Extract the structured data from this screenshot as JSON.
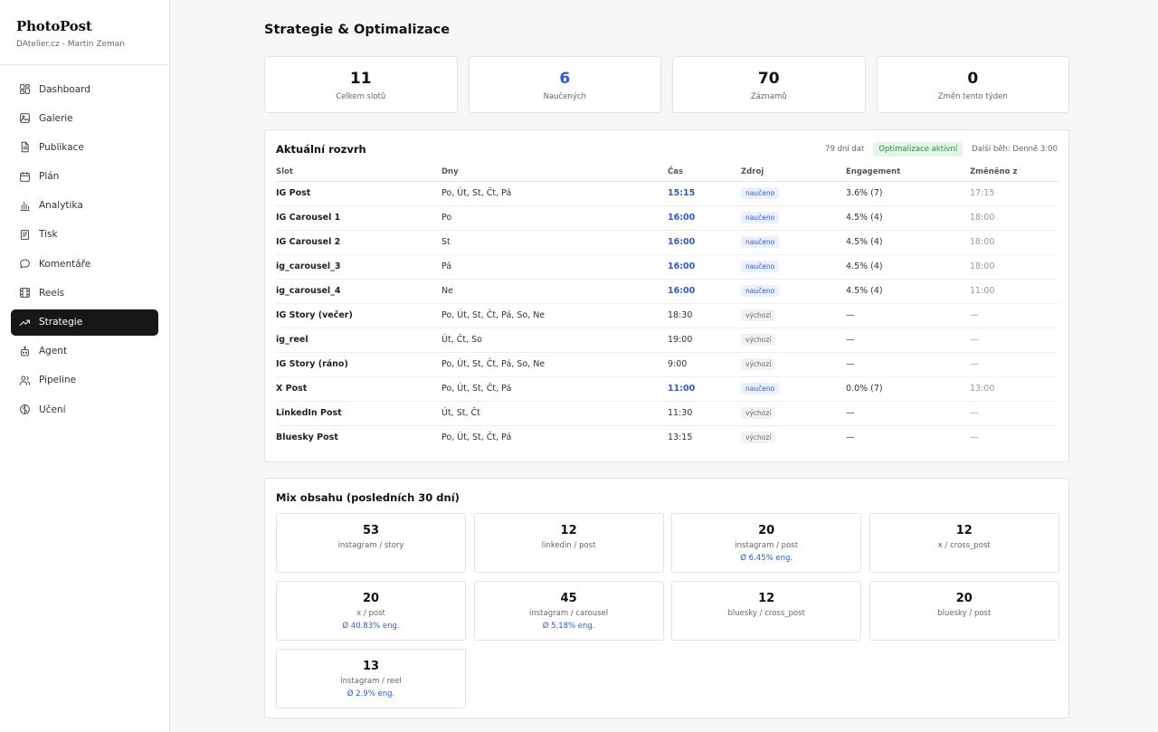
{
  "brand": {
    "title": "PhotoPost",
    "subtitle": "DAtelier.cz - Martin Zeman"
  },
  "nav": [
    {
      "label": "Dashboard",
      "icon": "dashboard-icon"
    },
    {
      "label": "Galerie",
      "icon": "gallery-icon"
    },
    {
      "label": "Publikace",
      "icon": "document-icon"
    },
    {
      "label": "Plán",
      "icon": "calendar-icon"
    },
    {
      "label": "Analytika",
      "icon": "bar-chart-icon"
    },
    {
      "label": "Tisk",
      "icon": "print-icon"
    },
    {
      "label": "Komentáře",
      "icon": "comment-icon"
    },
    {
      "label": "Reels",
      "icon": "film-icon"
    },
    {
      "label": "Strategie",
      "icon": "trending-up-icon",
      "active": true
    },
    {
      "label": "Agent",
      "icon": "robot-icon"
    },
    {
      "label": "Pipeline",
      "icon": "users-icon"
    },
    {
      "label": "Učení",
      "icon": "brain-icon"
    }
  ],
  "page": {
    "title": "Strategie & Optimalizace"
  },
  "stats": [
    {
      "value": "11",
      "label": "Celkem slotů"
    },
    {
      "value": "6",
      "label": "Naučených",
      "highlight": true
    },
    {
      "value": "70",
      "label": "Záznamů"
    },
    {
      "value": "0",
      "label": "Změn tento týden"
    }
  ],
  "schedule": {
    "title": "Aktuální rozvrh",
    "days_of_data": "79 dní dat",
    "status": "Optimalizace aktivní",
    "next_run": "Další běh: Denně 3:00",
    "columns": [
      "Slot",
      "Dny",
      "Čas",
      "Zdroj",
      "Engagement",
      "Změněno z"
    ],
    "rows": [
      {
        "slot": "IG Post",
        "days": "Po, Út, St, Čt, Pá",
        "time": "15:15",
        "source": "naučeno",
        "learned": true,
        "engagement": "3.6% (7)",
        "changed": "17:15"
      },
      {
        "slot": "IG Carousel 1",
        "days": "Po",
        "time": "16:00",
        "source": "naučeno",
        "learned": true,
        "engagement": "4.5% (4)",
        "changed": "18:00"
      },
      {
        "slot": "IG Carousel 2",
        "days": "St",
        "time": "16:00",
        "source": "naučeno",
        "learned": true,
        "engagement": "4.5% (4)",
        "changed": "18:00"
      },
      {
        "slot": "ig_carousel_3",
        "days": "Pá",
        "time": "16:00",
        "source": "naučeno",
        "learned": true,
        "engagement": "4.5% (4)",
        "changed": "18:00"
      },
      {
        "slot": "ig_carousel_4",
        "days": "Ne",
        "time": "16:00",
        "source": "naučeno",
        "learned": true,
        "engagement": "4.5% (4)",
        "changed": "11:00"
      },
      {
        "slot": "IG Story (večer)",
        "days": "Po, Út, St, Čt, Pá, So, Ne",
        "time": "18:30",
        "source": "výchozí",
        "learned": false,
        "engagement": "—",
        "changed": "—"
      },
      {
        "slot": "ig_reel",
        "days": "Út, Čt, So",
        "time": "19:00",
        "source": "výchozí",
        "learned": false,
        "engagement": "—",
        "changed": "—"
      },
      {
        "slot": "IG Story (ráno)",
        "days": "Po, Út, St, Čt, Pá, So, Ne",
        "time": "9:00",
        "source": "výchozí",
        "learned": false,
        "engagement": "—",
        "changed": "—"
      },
      {
        "slot": "X Post",
        "days": "Po, Út, St, Čt, Pá",
        "time": "11:00",
        "source": "naučeno",
        "learned": true,
        "engagement": "0.0% (7)",
        "changed": "13:00"
      },
      {
        "slot": "LinkedIn Post",
        "days": "Út, St, Čt",
        "time": "11:30",
        "source": "výchozí",
        "learned": false,
        "engagement": "—",
        "changed": "—"
      },
      {
        "slot": "Bluesky Post",
        "days": "Po, Út, St, Čt, Pá",
        "time": "13:15",
        "source": "výchozí",
        "learned": false,
        "engagement": "—",
        "changed": "—"
      }
    ]
  },
  "mix": {
    "title": "Mix obsahu (posledních 30 dní)",
    "items": [
      {
        "count": "53",
        "label": "instagram / story",
        "eng": ""
      },
      {
        "count": "12",
        "label": "linkedin / post",
        "eng": ""
      },
      {
        "count": "20",
        "label": "instagram / post",
        "eng": "Ø 6.45% eng."
      },
      {
        "count": "12",
        "label": "x / cross_post",
        "eng": ""
      },
      {
        "count": "20",
        "label": "x / post",
        "eng": "Ø 40.83% eng."
      },
      {
        "count": "45",
        "label": "instagram / carousel",
        "eng": "Ø 5.18% eng."
      },
      {
        "count": "12",
        "label": "bluesky / cross_post",
        "eng": ""
      },
      {
        "count": "20",
        "label": "bluesky / post",
        "eng": ""
      },
      {
        "count": "13",
        "label": "instagram / reel",
        "eng": "Ø 2.9% eng."
      }
    ]
  },
  "colors": {
    "accent": "#2a5bd7",
    "active_nav": "#171717",
    "status_green": "#2f8a47"
  }
}
